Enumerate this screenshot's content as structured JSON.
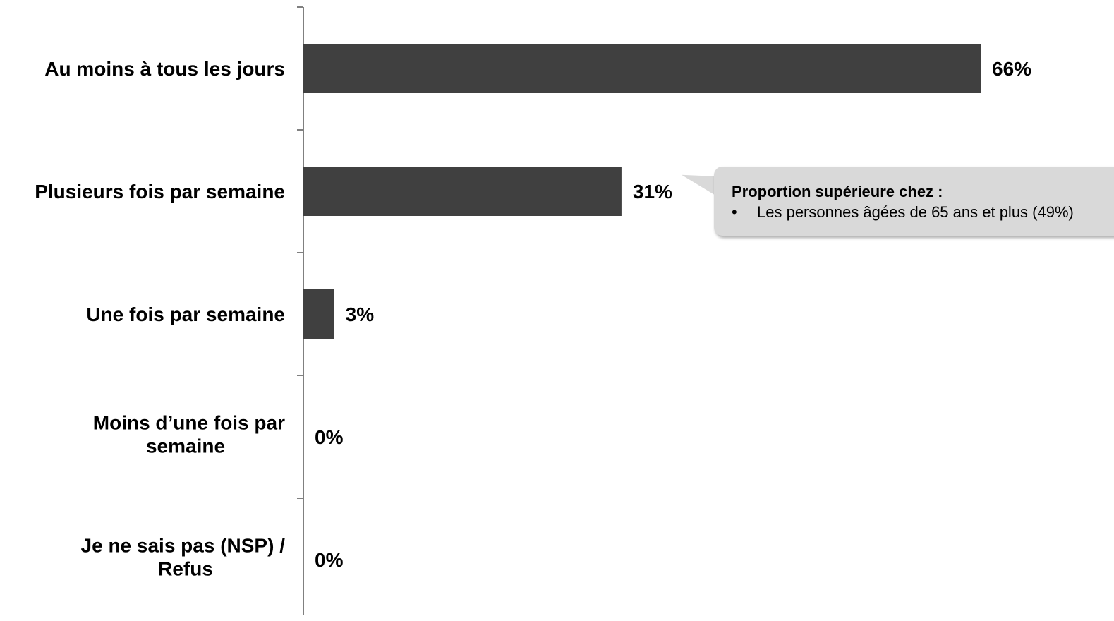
{
  "chart_data": {
    "type": "bar",
    "orientation": "horizontal",
    "categories": [
      "Au moins à tous les jours",
      "Plusieurs fois par semaine",
      "Une fois par semaine",
      "Moins d’une fois par semaine",
      "Je ne sais pas (NSP) / Refus"
    ],
    "values": [
      66,
      31,
      3,
      0,
      0
    ],
    "value_labels": [
      "66%",
      "31%",
      "3%",
      "0%",
      "0%"
    ],
    "xlim": [
      0,
      100
    ],
    "bar_color": "#404040",
    "grid": false,
    "title": "",
    "xlabel": "",
    "ylabel": ""
  },
  "callout": {
    "title": "Proportion supérieure chez :",
    "bullet": "•",
    "items": [
      "Les personnes âgées de 65 ans et plus (49%)"
    ]
  }
}
